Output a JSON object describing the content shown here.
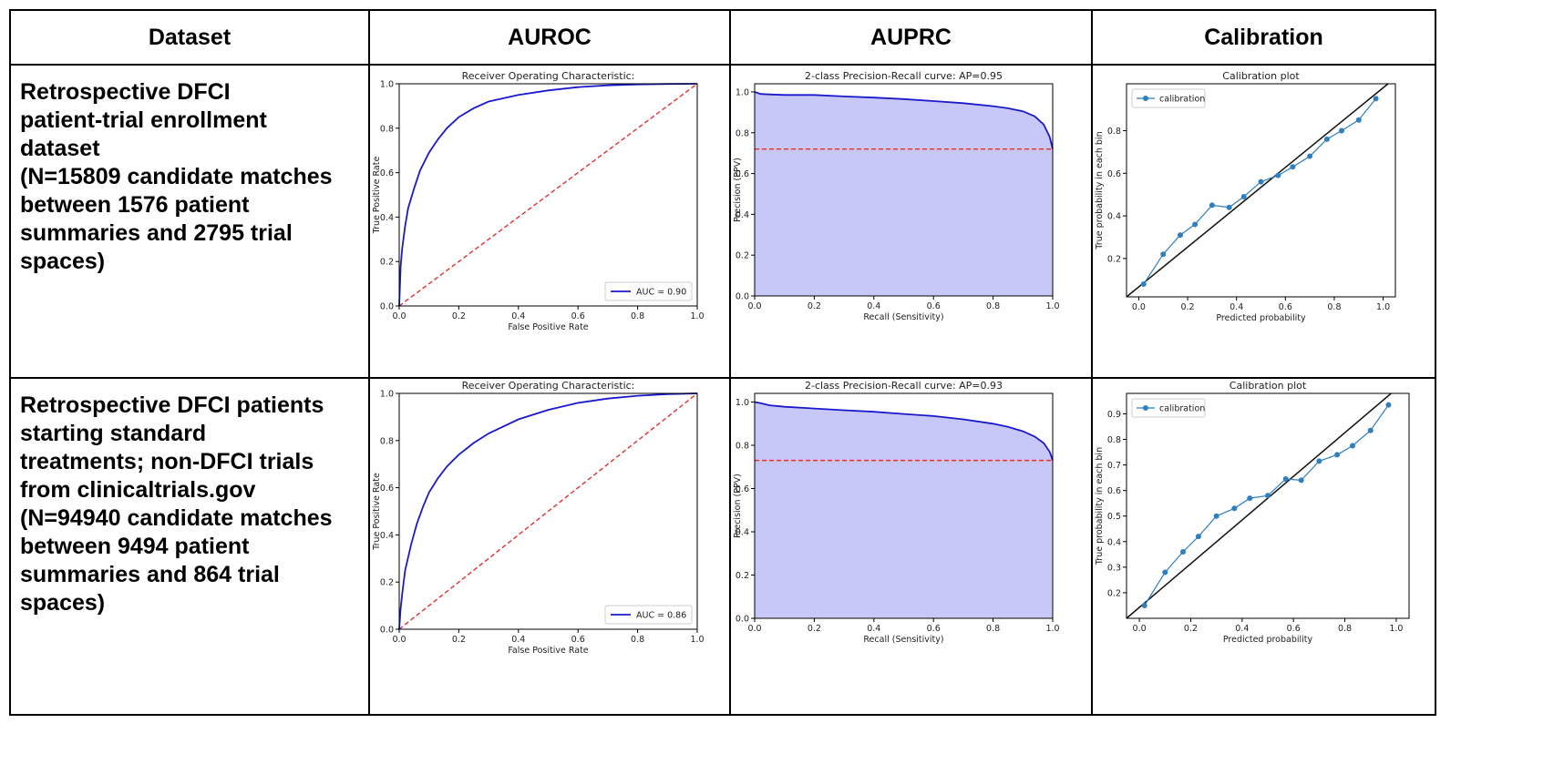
{
  "table": {
    "headers": [
      "Dataset",
      "AUROC",
      "AUPRC",
      "Calibration"
    ],
    "rows": [
      {
        "dataset": [
          "Retrospective DFCI",
          "patient-trial enrollment",
          "dataset",
          "(N=15809 candidate matches",
          "between 1576 patient",
          "summaries and 2795 trial",
          "spaces)"
        ]
      },
      {
        "dataset": [
          "Retrospective DFCI patients",
          "starting standard",
          "treatments; non-DFCI trials",
          "from clinicaltrials.gov",
          "(N=94940 candidate matches",
          "between 9494 patient",
          "summaries and 864 trial",
          "spaces)"
        ]
      }
    ]
  },
  "colors": {
    "curve": "#1a1acc",
    "chance": "#e03030",
    "pr_fill": "#c8c8f8",
    "calibration": "#2f7fbf",
    "diagonal": "#111111"
  },
  "chart_data": [
    {
      "type": "line",
      "id": "roc1",
      "title": "Receiver Operating Characteristic:",
      "xlabel": "False Positive Rate",
      "ylabel": "True Positive Rate",
      "xlim": [
        0,
        1
      ],
      "ylim": [
        0,
        1
      ],
      "xticks": [
        "0.0",
        "0.2",
        "0.4",
        "0.6",
        "0.8",
        "1.0"
      ],
      "yticks": [
        "0.0",
        "0.2",
        "0.4",
        "0.6",
        "0.8",
        "1.0"
      ],
      "series": [
        {
          "name": "AUC = 0.90",
          "x": [
            0,
            0.005,
            0.01,
            0.02,
            0.03,
            0.05,
            0.07,
            0.1,
            0.13,
            0.16,
            0.2,
            0.25,
            0.3,
            0.4,
            0.5,
            0.6,
            0.7,
            0.8,
            0.9,
            1.0
          ],
          "y": [
            0,
            0.18,
            0.26,
            0.36,
            0.44,
            0.53,
            0.61,
            0.69,
            0.75,
            0.8,
            0.85,
            0.89,
            0.92,
            0.95,
            0.97,
            0.985,
            0.993,
            0.997,
            0.999,
            1.0
          ]
        },
        {
          "name": "chance",
          "x": [
            0,
            1
          ],
          "y": [
            0,
            1
          ]
        }
      ],
      "legend": "lower-right",
      "grid": false
    },
    {
      "type": "area",
      "id": "pr1",
      "title": "2-class Precision-Recall curve: AP=0.95",
      "xlabel": "Recall (Sensitivity)",
      "ylabel": "Precision (PPV)",
      "xlim": [
        0,
        1
      ],
      "ylim": [
        0,
        1.04
      ],
      "xticks": [
        "0.0",
        "0.2",
        "0.4",
        "0.6",
        "0.8",
        "1.0"
      ],
      "yticks": [
        "0.0",
        "0.2",
        "0.4",
        "0.6",
        "0.8",
        "1.0"
      ],
      "x": [
        0,
        0.02,
        0.05,
        0.1,
        0.2,
        0.3,
        0.4,
        0.5,
        0.6,
        0.7,
        0.8,
        0.85,
        0.9,
        0.94,
        0.97,
        0.99,
        1.0
      ],
      "y": [
        1.0,
        0.99,
        0.988,
        0.985,
        0.985,
        0.978,
        0.972,
        0.965,
        0.955,
        0.945,
        0.93,
        0.92,
        0.905,
        0.88,
        0.84,
        0.78,
        0.72
      ],
      "baseline": 0.72,
      "grid": false
    },
    {
      "type": "line",
      "id": "cal1",
      "title": "Calibration plot",
      "xlabel": "Predicted probability",
      "ylabel": "True probability in each bin",
      "xlim": [
        -0.05,
        1.05
      ],
      "ylim": [
        0.02,
        1.02
      ],
      "xticks": [
        "0.0",
        "0.2",
        "0.4",
        "0.6",
        "0.8",
        "1.0"
      ],
      "yticks": [
        "0.2",
        "0.4",
        "0.6",
        "0.8"
      ],
      "series": [
        {
          "name": "calibration",
          "x": [
            0.02,
            0.1,
            0.17,
            0.23,
            0.3,
            0.37,
            0.43,
            0.5,
            0.57,
            0.63,
            0.7,
            0.77,
            0.83,
            0.9,
            0.97
          ],
          "y": [
            0.08,
            0.22,
            0.31,
            0.36,
            0.45,
            0.44,
            0.49,
            0.56,
            0.59,
            0.63,
            0.68,
            0.76,
            0.8,
            0.85,
            0.95
          ]
        }
      ],
      "legend": "top-left",
      "grid": false
    },
    {
      "type": "line",
      "id": "roc2",
      "title": "Receiver Operating Characteristic:",
      "xlabel": "False Positive Rate",
      "ylabel": "True Positive Rate",
      "xlim": [
        0,
        1
      ],
      "ylim": [
        0,
        1
      ],
      "xticks": [
        "0.0",
        "0.2",
        "0.4",
        "0.6",
        "0.8",
        "1.0"
      ],
      "yticks": [
        "0.0",
        "0.2",
        "0.4",
        "0.6",
        "0.8",
        "1.0"
      ],
      "series": [
        {
          "name": "AUC = 0.86",
          "x": [
            0,
            0.005,
            0.01,
            0.02,
            0.04,
            0.06,
            0.08,
            0.1,
            0.13,
            0.16,
            0.2,
            0.25,
            0.3,
            0.4,
            0.5,
            0.6,
            0.7,
            0.8,
            0.9,
            1.0
          ],
          "y": [
            0,
            0.09,
            0.15,
            0.25,
            0.36,
            0.45,
            0.52,
            0.58,
            0.64,
            0.69,
            0.74,
            0.79,
            0.83,
            0.89,
            0.93,
            0.96,
            0.978,
            0.99,
            0.997,
            1.0
          ]
        },
        {
          "name": "chance",
          "x": [
            0,
            1
          ],
          "y": [
            0,
            1
          ]
        }
      ],
      "legend": "lower-right",
      "grid": false
    },
    {
      "type": "area",
      "id": "pr2",
      "title": "2-class Precision-Recall curve: AP=0.93",
      "xlabel": "Recall (Sensitivity)",
      "ylabel": "Precision (PPV)",
      "xlim": [
        0,
        1
      ],
      "ylim": [
        0,
        1.04
      ],
      "xticks": [
        "0.0",
        "0.2",
        "0.4",
        "0.6",
        "0.8",
        "1.0"
      ],
      "yticks": [
        "0.0",
        "0.2",
        "0.4",
        "0.6",
        "0.8",
        "1.0"
      ],
      "x": [
        0,
        0.02,
        0.05,
        0.1,
        0.2,
        0.3,
        0.4,
        0.5,
        0.6,
        0.7,
        0.8,
        0.85,
        0.9,
        0.94,
        0.97,
        0.99,
        1.0
      ],
      "y": [
        1.0,
        0.995,
        0.985,
        0.978,
        0.97,
        0.962,
        0.955,
        0.945,
        0.935,
        0.92,
        0.9,
        0.885,
        0.865,
        0.84,
        0.81,
        0.77,
        0.73
      ],
      "baseline": 0.73,
      "grid": false
    },
    {
      "type": "line",
      "id": "cal2",
      "title": "Calibration plot",
      "xlabel": "Predicted probability",
      "ylabel": "True probability in each bin",
      "xlim": [
        -0.05,
        1.05
      ],
      "ylim": [
        0.1,
        0.98
      ],
      "xticks": [
        "0.0",
        "0.2",
        "0.4",
        "0.6",
        "0.8",
        "1.0"
      ],
      "yticks": [
        "0.2",
        "0.3",
        "0.4",
        "0.5",
        "0.6",
        "0.7",
        "0.8",
        "0.9"
      ],
      "series": [
        {
          "name": "calibration",
          "x": [
            0.02,
            0.1,
            0.17,
            0.23,
            0.3,
            0.37,
            0.43,
            0.5,
            0.57,
            0.63,
            0.7,
            0.77,
            0.83,
            0.9,
            0.97
          ],
          "y": [
            0.15,
            0.28,
            0.36,
            0.42,
            0.5,
            0.53,
            0.57,
            0.58,
            0.645,
            0.64,
            0.715,
            0.74,
            0.775,
            0.835,
            0.935
          ]
        }
      ],
      "legend": "top-left",
      "grid": false
    }
  ]
}
